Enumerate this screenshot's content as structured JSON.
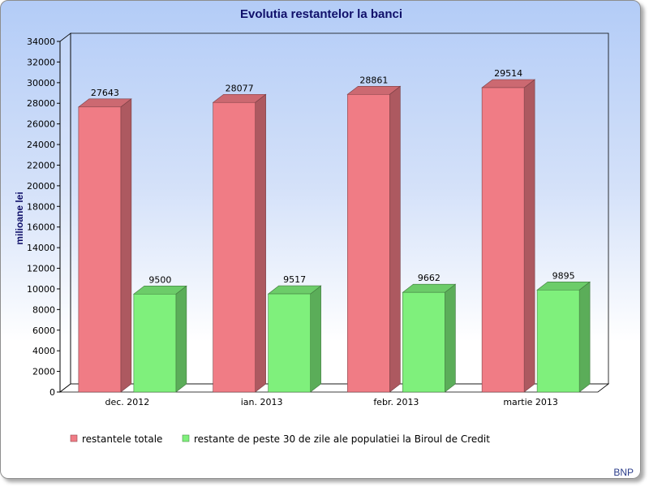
{
  "chart_data": {
    "type": "bar",
    "title": "Evolutia restantelor la banci",
    "ylabel": "milioane lei",
    "xlabel": "",
    "ylim": [
      0,
      34000
    ],
    "ytick_step": 2000,
    "categories": [
      "dec. 2012",
      "ian. 2013",
      "febr. 2013",
      "martie 2013"
    ],
    "series": [
      {
        "name": "restantele totale",
        "values": [
          27643,
          28077,
          28861,
          29514
        ],
        "color": "#f07c85"
      },
      {
        "name": "restante de peste 30 de zile ale populatiei la Biroul de Credit",
        "values": [
          9500,
          9517,
          9662,
          9895
        ],
        "color": "#7ff07c"
      }
    ],
    "legend_position": "bottom",
    "grid": false,
    "credit": "BNP"
  }
}
